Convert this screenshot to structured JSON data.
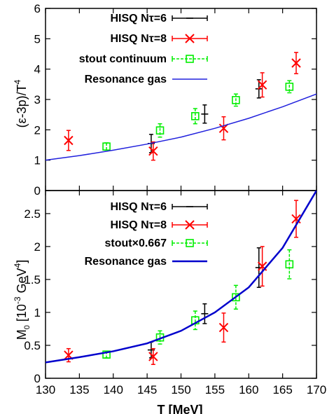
{
  "chart_data": [
    {
      "type": "scatter",
      "ylabel": "(ε-3p)/T⁴",
      "xlim": [
        130,
        170
      ],
      "ylim": [
        0,
        6
      ],
      "yticks": [
        0,
        1,
        2,
        3,
        4,
        5,
        6
      ],
      "ytick_labels": [
        "0",
        "1",
        "2",
        "3",
        "4",
        "5",
        "6"
      ],
      "legend_position": "top-right",
      "series": [
        {
          "name": "HISQ Nτ=6",
          "color": "#000000",
          "marker": "plus",
          "x": [
            145.6,
            153.5,
            161.5
          ],
          "y": [
            1.55,
            2.52,
            3.35
          ],
          "yerr": [
            0.3,
            0.3,
            0.3
          ]
        },
        {
          "name": "HISQ Nτ=8",
          "color": "#ff0000",
          "marker": "cross",
          "x": [
            133.4,
            145.9,
            156.3,
            162.0,
            167.0
          ],
          "y": [
            1.65,
            1.3,
            2.05,
            3.48,
            4.2
          ],
          "yerr": [
            0.33,
            0.3,
            0.38,
            0.4,
            0.35
          ]
        },
        {
          "name": "stout continuum",
          "color": "#00ee00",
          "marker": "square",
          "x": [
            139.0,
            146.9,
            152.1,
            158.1,
            166.0
          ],
          "y": [
            1.45,
            1.98,
            2.45,
            2.98,
            3.42
          ],
          "yerr": [
            0.12,
            0.22,
            0.25,
            0.2,
            0.2
          ]
        },
        {
          "name": "Resonance gas",
          "color": "#2020dd",
          "line": true,
          "x": [
            130,
            135,
            140,
            145,
            150,
            155,
            160,
            165,
            170
          ],
          "y": [
            1.0,
            1.15,
            1.33,
            1.53,
            1.76,
            2.05,
            2.38,
            2.76,
            3.18
          ]
        }
      ]
    },
    {
      "type": "scatter",
      "xlabel": "T [MeV]",
      "ylabel": "M₀ [10⁻³ GeV⁴]",
      "xlim": [
        130,
        170
      ],
      "ylim": [
        0,
        2.85
      ],
      "xticks": [
        130,
        135,
        140,
        145,
        150,
        155,
        160,
        165,
        170
      ],
      "xtick_labels": [
        "130",
        "135",
        "140",
        "145",
        "150",
        "155",
        "160",
        "165",
        "170"
      ],
      "yticks": [
        0,
        0.5,
        1,
        1.5,
        2,
        2.5
      ],
      "ytick_labels": [
        "0",
        "0.5",
        "1",
        "1.5",
        "2",
        "2.5"
      ],
      "legend_position": "top-left",
      "series": [
        {
          "name": "HISQ Nτ=6",
          "color": "#000000",
          "marker": "plus",
          "x": [
            145.6,
            153.5,
            161.5
          ],
          "y": [
            0.43,
            0.98,
            1.68
          ],
          "yerr": [
            0.12,
            0.15,
            0.3
          ]
        },
        {
          "name": "HISQ Nτ=8",
          "color": "#ff0000",
          "marker": "cross",
          "x": [
            133.4,
            145.9,
            156.3,
            162.0,
            167.0
          ],
          "y": [
            0.35,
            0.33,
            0.77,
            1.7,
            2.42
          ],
          "yerr": [
            0.1,
            0.12,
            0.22,
            0.3,
            0.28
          ]
        },
        {
          "name": "stout×0.667",
          "color": "#00ee00",
          "marker": "square",
          "x": [
            139.0,
            146.9,
            152.1,
            158.1,
            166.0
          ],
          "y": [
            0.36,
            0.62,
            0.88,
            1.23,
            1.73
          ],
          "yerr": [
            0.05,
            0.1,
            0.14,
            0.18,
            0.22
          ]
        },
        {
          "name": "Resonance gas",
          "color": "#0000cc",
          "line": true,
          "x": [
            130,
            135,
            140,
            145,
            150,
            155,
            160,
            165,
            170
          ],
          "y": [
            0.24,
            0.32,
            0.41,
            0.53,
            0.72,
            1.0,
            1.38,
            1.98,
            2.85
          ]
        }
      ]
    }
  ]
}
